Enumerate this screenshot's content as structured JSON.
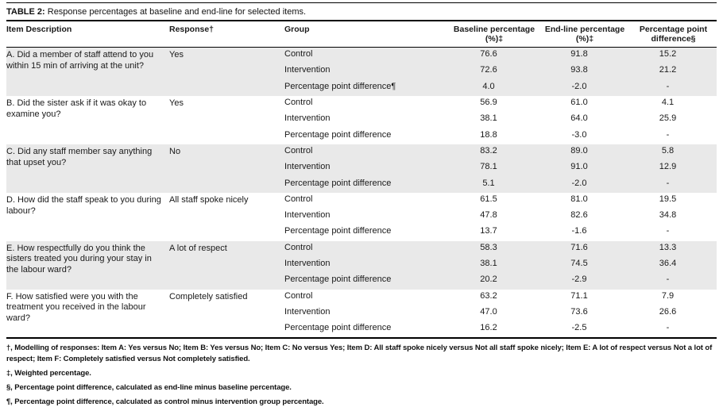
{
  "title": {
    "label": "TABLE 2:",
    "text": "Response percentages at baseline and end-line for selected items."
  },
  "table": {
    "columns": [
      "Item Description",
      "Response†",
      "Group",
      "Baseline percentage (%)‡",
      "End-line percentage (%)‡",
      "Percentage point difference§"
    ],
    "items": [
      {
        "description": "A. Did a member of staff attend to you within 15 min of arriving at the unit?",
        "response": "Yes",
        "rows": [
          {
            "group": "Control",
            "baseline": "76.6",
            "endline": "91.8",
            "diff": "15.2"
          },
          {
            "group": "Intervention",
            "baseline": "72.6",
            "endline": "93.8",
            "diff": "21.2"
          },
          {
            "group": "Percentage point difference¶",
            "baseline": "4.0",
            "endline": "-2.0",
            "diff": "-"
          }
        ]
      },
      {
        "description": "B. Did the sister ask if it was okay to examine you?",
        "response": "Yes",
        "rows": [
          {
            "group": "Control",
            "baseline": "56.9",
            "endline": "61.0",
            "diff": "4.1"
          },
          {
            "group": "Intervention",
            "baseline": "38.1",
            "endline": "64.0",
            "diff": "25.9"
          },
          {
            "group": "Percentage point difference",
            "baseline": "18.8",
            "endline": "-3.0",
            "diff": "-"
          }
        ]
      },
      {
        "description": "C. Did any staff member say anything that upset you?",
        "response": "No",
        "rows": [
          {
            "group": "Control",
            "baseline": "83.2",
            "endline": "89.0",
            "diff": "5.8"
          },
          {
            "group": "Intervention",
            "baseline": "78.1",
            "endline": "91.0",
            "diff": "12.9"
          },
          {
            "group": "Percentage point difference",
            "baseline": "5.1",
            "endline": "-2.0",
            "diff": "-"
          }
        ]
      },
      {
        "description": "D. How did the staff speak to you during labour?",
        "response": "All staff spoke nicely",
        "rows": [
          {
            "group": "Control",
            "baseline": "61.5",
            "endline": "81.0",
            "diff": "19.5"
          },
          {
            "group": "Intervention",
            "baseline": "47.8",
            "endline": "82.6",
            "diff": "34.8"
          },
          {
            "group": "Percentage point difference",
            "baseline": "13.7",
            "endline": "-1.6",
            "diff": "-"
          }
        ]
      },
      {
        "description": "E. How respectfully do you think the sisters treated you during your stay in the labour ward?",
        "response": "A lot of respect",
        "rows": [
          {
            "group": "Control",
            "baseline": "58.3",
            "endline": "71.6",
            "diff": "13.3"
          },
          {
            "group": "Intervention",
            "baseline": "38.1",
            "endline": "74.5",
            "diff": "36.4"
          },
          {
            "group": "Percentage point difference",
            "baseline": "20.2",
            "endline": "-2.9",
            "diff": "-"
          }
        ]
      },
      {
        "description": "F. How satisfied were you with the treatment you received in the labour ward?",
        "response": "Completely satisfied",
        "rows": [
          {
            "group": "Control",
            "baseline": "63.2",
            "endline": "71.1",
            "diff": "7.9"
          },
          {
            "group": "Intervention",
            "baseline": "47.0",
            "endline": "73.6",
            "diff": "26.6"
          },
          {
            "group": "Percentage point difference",
            "baseline": "16.2",
            "endline": "-2.5",
            "diff": "-"
          }
        ]
      }
    ]
  },
  "footnotes": [
    "†, Modelling of responses: Item A: Yes versus No; Item B: Yes versus No; Item C: No versus Yes; Item D: All staff spoke nicely versus Not all staff spoke nicely; Item E: A lot of respect versus Not a lot of respect; Item F: Completely satisfied versus Not completely satisfied.",
    "‡, Weighted percentage.",
    "§, Percentage point difference, calculated as end-line minus baseline percentage.",
    "¶, Percentage point difference, calculated as control minus intervention group percentage."
  ],
  "colors": {
    "row_shading": "#e9e9e9",
    "rule": "#000000",
    "text": "#1a1a1a"
  }
}
